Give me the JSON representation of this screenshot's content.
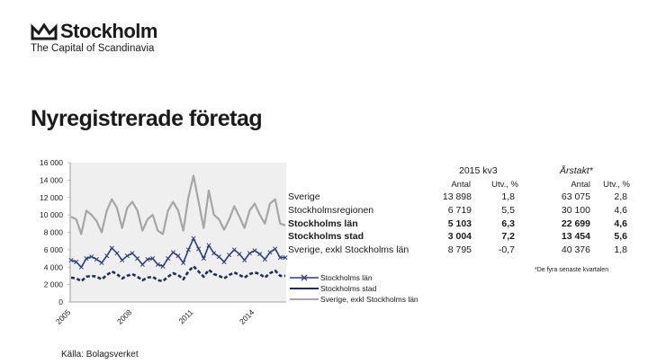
{
  "brand": {
    "name": "Stockholm",
    "tagline": "The Capital of Scandinavia"
  },
  "page_title": "Nyregistrerade företag",
  "source": "Källa: Bolagsverket",
  "table": {
    "group1": "2015 kv3",
    "group2": "Årstakt*",
    "col_antal": "Antal",
    "col_utv": "Utv., %",
    "rows": [
      {
        "label": "Sverige",
        "antal_kv": "13 898",
        "utv_kv": "1,8",
        "antal_ar": "63 075",
        "utv_ar": "2,8",
        "bold": false
      },
      {
        "label": "Stockholmsregionen",
        "antal_kv": "6 719",
        "utv_kv": "5,5",
        "antal_ar": "30 100",
        "utv_ar": "4,6",
        "bold": false
      },
      {
        "label": "Stockholms län",
        "antal_kv": "5 103",
        "utv_kv": "6,3",
        "antal_ar": "22 699",
        "utv_ar": "4,6",
        "bold": true
      },
      {
        "label": "Stockholms stad",
        "antal_kv": "3 004",
        "utv_kv": "7,2",
        "antal_ar": "13 454",
        "utv_ar": "5,6",
        "bold": true
      },
      {
        "label": "Sverige, exkl Stockholms län",
        "antal_kv": "8 795",
        "utv_kv": "-0,7",
        "antal_ar": "40 376",
        "utv_ar": "1,8",
        "bold": false
      }
    ],
    "footnote": "*De fyra senaste kvartalen"
  },
  "colors": {
    "lan": "#2e3f7a",
    "stad": "#1f2e5c",
    "exkl": "#a6a6a6",
    "plot_bg": "#efefef"
  },
  "chart_data": {
    "type": "line",
    "ylim": [
      0,
      16000
    ],
    "yticks": [
      0,
      2000,
      4000,
      6000,
      8000,
      10000,
      12000,
      14000,
      16000
    ],
    "ytick_labels": [
      "0",
      "2 000",
      "4 000",
      "6 000",
      "8 000",
      "10 000",
      "12 000",
      "14 000",
      "16 000"
    ],
    "x_start": 2005,
    "quarters_per_year": 4,
    "xtick_labels": [
      {
        "label": "2005",
        "year": 2005
      },
      {
        "label": "2008",
        "year": 2008
      },
      {
        "label": "2011",
        "year": 2011
      },
      {
        "label": "2014",
        "year": 2014
      }
    ],
    "series": [
      {
        "name": "Sverige, exkl Stockholms län",
        "key": "exkl",
        "marker": "none",
        "values": [
          9800,
          9500,
          7800,
          10500,
          10000,
          9300,
          8000,
          10500,
          11800,
          10800,
          8500,
          10800,
          11500,
          10500,
          8200,
          9500,
          10000,
          8200,
          7800,
          10500,
          11500,
          10500,
          8200,
          12000,
          14500,
          11500,
          8500,
          12800,
          10000,
          9500,
          8300,
          9500,
          11000,
          9800,
          8500,
          10500,
          11300,
          10000,
          9000,
          11300,
          11800,
          9000,
          8800
        ]
      },
      {
        "name": "Stockholms län",
        "key": "lan",
        "marker": "x",
        "values": [
          4800,
          4600,
          4000,
          5000,
          5200,
          4900,
          4500,
          5300,
          6200,
          5600,
          4800,
          5300,
          5600,
          5000,
          4300,
          4900,
          5000,
          4300,
          4100,
          5000,
          5700,
          5300,
          4500,
          6000,
          7300,
          6100,
          5000,
          6500,
          5600,
          5200,
          4600,
          5400,
          6000,
          5500,
          4800,
          5600,
          5900,
          5500,
          4900,
          5700,
          6100,
          5100,
          5100
        ]
      },
      {
        "name": "Stockholms stad",
        "key": "stad",
        "marker": "none",
        "values": [
          2800,
          2700,
          2400,
          2900,
          3000,
          2900,
          2600,
          3100,
          3500,
          3200,
          2700,
          3000,
          3200,
          2900,
          2500,
          2800,
          2900,
          2500,
          2400,
          2900,
          3300,
          3100,
          2600,
          3500,
          4100,
          3500,
          2900,
          3700,
          3200,
          3000,
          2700,
          3100,
          3400,
          3100,
          2800,
          3200,
          3400,
          3200,
          2800,
          3300,
          3600,
          3000,
          3000
        ]
      }
    ]
  }
}
